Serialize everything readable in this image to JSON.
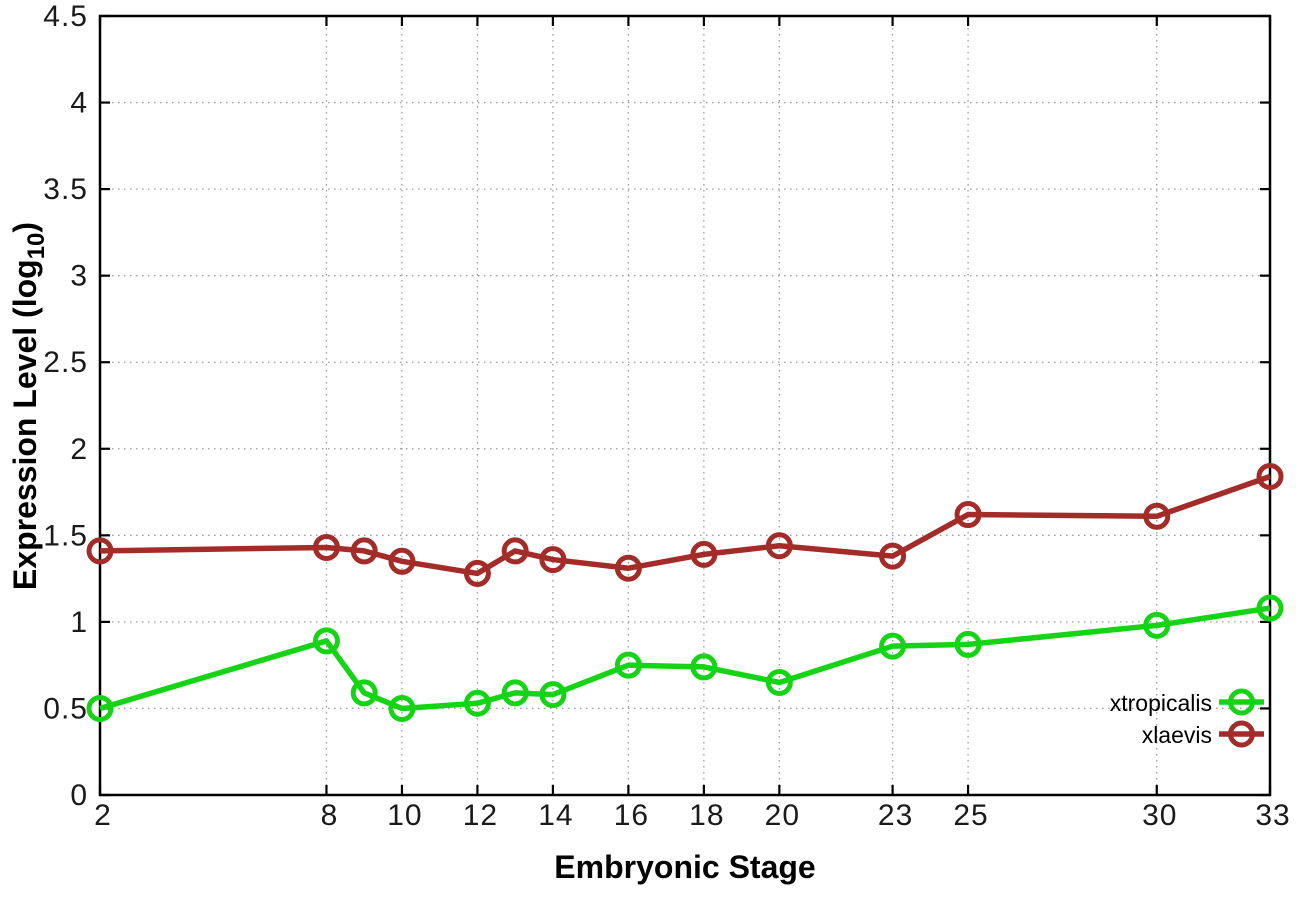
{
  "chart_data": {
    "type": "line",
    "title": "",
    "xlabel": "Embryonic Stage",
    "ylabel_parts": {
      "prefix": "Expression Level (log",
      "sub": "10",
      "suffix": ")"
    },
    "x": [
      2,
      8,
      9,
      10,
      12,
      13,
      14,
      16,
      18,
      20,
      23,
      25,
      30,
      33
    ],
    "series": [
      {
        "name": "xtropicalis",
        "color": "#15d415",
        "values": [
          0.5,
          0.89,
          0.59,
          0.5,
          0.53,
          0.59,
          0.58,
          0.75,
          0.74,
          0.65,
          0.86,
          0.87,
          0.98,
          1.08
        ]
      },
      {
        "name": "xlaevis",
        "color": "#a32c28",
        "values": [
          1.41,
          1.43,
          1.41,
          1.35,
          1.28,
          1.41,
          1.36,
          1.31,
          1.39,
          1.44,
          1.38,
          1.62,
          1.61,
          1.84
        ]
      }
    ],
    "xlim": [
      2,
      33
    ],
    "ylim": [
      0,
      4.5
    ],
    "xticks": [
      2,
      8,
      10,
      12,
      14,
      16,
      18,
      20,
      23,
      25,
      30,
      33
    ],
    "xtick_labels": [
      "2",
      "8",
      "10",
      "12",
      "14",
      "16",
      "18",
      "20",
      "23",
      "25",
      "30",
      "33"
    ],
    "yticks": [
      0,
      0.5,
      1,
      1.5,
      2,
      2.5,
      3,
      3.5,
      4,
      4.5
    ],
    "ytick_labels": [
      "0",
      "0.5",
      "1",
      "1.5",
      "2",
      "2.5",
      "3",
      "3.5",
      "4",
      "4.5"
    ],
    "grid": true,
    "legend_position": "inside-right-bottom",
    "colors": {
      "background": "#ffffff",
      "border": "#000000",
      "grid": "#9c9c9c",
      "tick_text": "#1a1a1a"
    }
  }
}
